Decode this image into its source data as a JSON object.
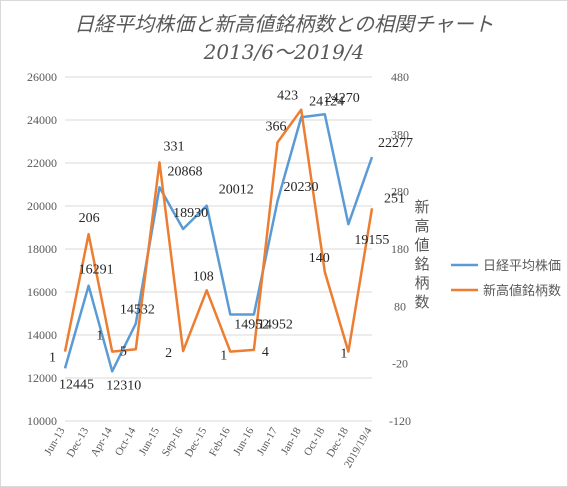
{
  "chart_data": {
    "type": "line",
    "title_lines": [
      "日経平均株価と新高値銘柄数との相関チャート",
      "2013/6～2019/4"
    ],
    "x": [
      "Jun-13",
      "Dec-13",
      "Apr-14",
      "Oct-14",
      "Jun-15",
      "Sep-16",
      "Dec-15",
      "Feb-16",
      "Jun-16",
      "Jun-17",
      "Jan-18",
      "Oct-18",
      "Dec-18",
      "2019/19/4"
    ],
    "y_left": {
      "min": 10000,
      "max": 26000,
      "step": 2000,
      "ticks": [
        "10000",
        "12000",
        "14000",
        "16000",
        "18000",
        "20000",
        "22000",
        "24000",
        "26000"
      ]
    },
    "y_right": {
      "min": -120,
      "max": 480,
      "step": 100,
      "ticks": [
        "-120",
        "-20",
        "80",
        "180",
        "280",
        "380",
        "480"
      ],
      "label": "新高値銘柄数"
    },
    "series": [
      {
        "name": "日経平均株価",
        "axis": "left",
        "color": "#5b9bd5",
        "values": [
          12445,
          16291,
          12310,
          14532,
          20868,
          18930,
          20012,
          14952,
          14952,
          20230,
          24124,
          24270,
          19155,
          22277
        ],
        "labels": [
          "12445",
          "16291",
          "12310",
          "14532",
          "20868",
          "18930",
          "20012",
          "14952",
          "14952",
          "20230",
          "24124",
          "24270",
          "19155",
          "22277"
        ]
      },
      {
        "name": "新高値銘柄数",
        "axis": "right",
        "color": "#ed7d31",
        "values": [
          1,
          206,
          1,
          5,
          331,
          2,
          108,
          1,
          4,
          366,
          423,
          140,
          1,
          251
        ],
        "labels": [
          "1",
          "206",
          "1",
          "5",
          "331",
          "2",
          "108",
          "1",
          "4",
          "366",
          "423",
          "140",
          "1",
          "251"
        ]
      }
    ],
    "legend_position": "right",
    "grid": true
  }
}
